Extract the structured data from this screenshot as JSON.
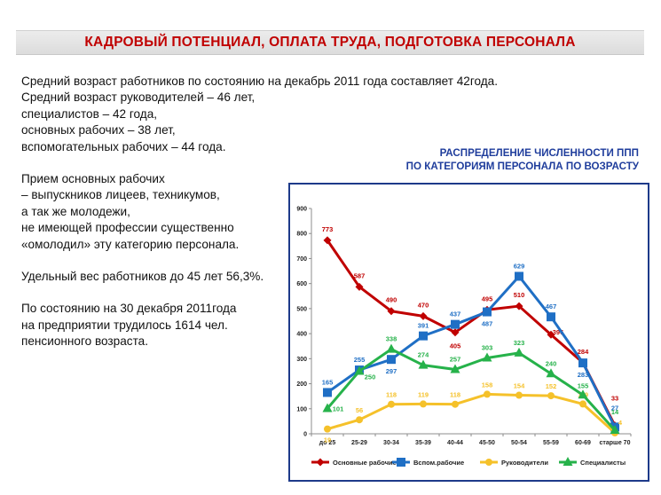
{
  "header": {
    "title": "КАДРОВЫЙ ПОТЕНЦИАЛ, ОПЛАТА ТРУДА, ПОДГОТОВКА ПЕРСОНАЛА"
  },
  "text": {
    "paragraphs": [
      [
        "Средний возраст работников по состоянию на декабрь 2011 года составляет 42года.",
        "Средний возраст руководителей – 46 лет,",
        "специалистов – 42 года,",
        "основных рабочих – 38 лет,",
        "вспомогательных рабочих – 44 года."
      ],
      [
        "Прием основных рабочих",
        "– выпускников лицеев, техникумов,",
        "а так же молодежи,",
        "не имеющей профессии существенно",
        "«омолодил» эту категорию персонала."
      ],
      [
        "Удельный вес работников до 45 лет 56,3%."
      ],
      [
        "По состоянию на 30 декабря 2011года",
        "на предприятии трудилось 1614 чел.",
        "пенсионного возраста."
      ]
    ]
  },
  "chart_heading": {
    "line1": "РАСПРЕДЕЛЕНИЕ ЧИСЛЕННОСТИ ППП",
    "line2": "ПО КАТЕГОРИЯМ ПЕРСОНАЛА ПО ВОЗРАСТУ"
  },
  "chart_data": {
    "type": "line",
    "categories": [
      "до 25",
      "25-29",
      "30-34",
      "35-39",
      "40-44",
      "45-50",
      "50-54",
      "55-59",
      "60-69",
      "старше 70"
    ],
    "ylim": [
      0,
      900
    ],
    "yticks": [
      0,
      100,
      200,
      300,
      400,
      500,
      600,
      700,
      800,
      900
    ],
    "grid": false,
    "legend_position": "bottom",
    "series": [
      {
        "name": "Основные рабочие",
        "color": "#c00000",
        "marker": "diamond",
        "values": [
          773,
          587,
          490,
          470,
          405,
          495,
          510,
          396,
          284,
          33
        ]
      },
      {
        "name": "Вспом.рабочие",
        "color": "#1f6fc5",
        "marker": "square",
        "values": [
          165,
          255,
          297,
          391,
          437,
          487,
          629,
          467,
          283,
          27
        ]
      },
      {
        "name": "Руководители",
        "color": "#f5c12a",
        "marker": "circle",
        "values": [
          19,
          56,
          118,
          119,
          118,
          158,
          154,
          152,
          119,
          4
        ]
      },
      {
        "name": "Специалисты",
        "color": "#26b24a",
        "marker": "triangle",
        "values": [
          101,
          250,
          338,
          274,
          257,
          303,
          323,
          240,
          155,
          14
        ]
      }
    ]
  }
}
